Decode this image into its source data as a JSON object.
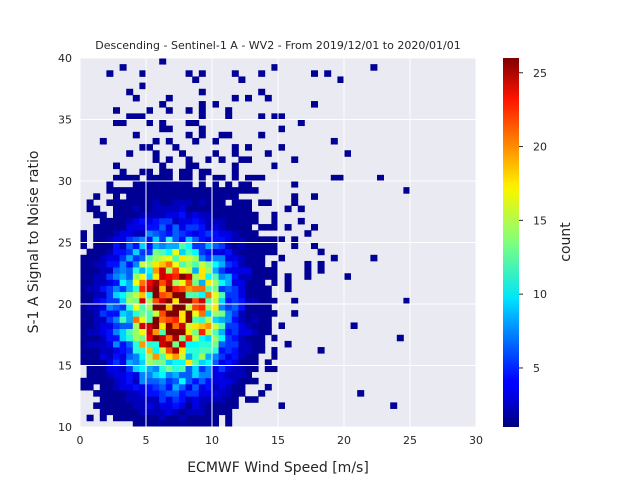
{
  "chart_data": {
    "type": "heatmap",
    "title": "Descending - Sentinel-1 A - WV2 - From 2019/12/01 to 2020/01/01",
    "xlabel": "ECMWF Wind Speed [m/s]",
    "ylabel": "S-1 A Signal to Noise ratio",
    "colorbar_label": "count",
    "xlim": [
      0,
      30
    ],
    "ylim": [
      10,
      40
    ],
    "xticks": [
      0,
      5,
      10,
      15,
      20,
      25,
      30
    ],
    "yticks": [
      10,
      15,
      20,
      25,
      30,
      35,
      40
    ],
    "colorbar_ticks": [
      5,
      10,
      15,
      20,
      25
    ],
    "colorbar_range": [
      1,
      26
    ],
    "colormap": "jet",
    "grid": true,
    "bin_width": {
      "x": 0.5,
      "y": 0.5
    },
    "density": {
      "peak_count": 26,
      "center": {
        "x": 7.0,
        "y": 19.5
      },
      "sigma": {
        "x": 2.6,
        "y": 3.6
      },
      "x_range": [
        0,
        25
      ],
      "y_range": [
        10,
        40
      ],
      "note_free_text": ""
    }
  }
}
